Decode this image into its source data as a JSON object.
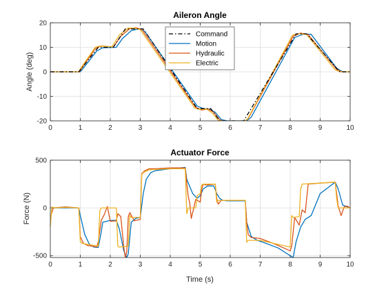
{
  "chart_data": [
    {
      "type": "line",
      "title": "Aileron Angle",
      "xlabel": "",
      "ylabel": "Angle (deg)",
      "xlim": [
        0,
        10
      ],
      "ylim": [
        -20,
        20
      ],
      "xticks": [
        0,
        1,
        2,
        3,
        4,
        5,
        6,
        7,
        8,
        9,
        10
      ],
      "yticks": [
        -20,
        -10,
        0,
        10,
        20
      ],
      "grid": true,
      "legend_position": "top-center",
      "series": [
        {
          "name": "Command",
          "color": "#000000",
          "dash": "dashdot",
          "x": [
            0,
            0.95,
            1.6,
            2.1,
            2.5,
            3.1,
            4.9,
            5.35,
            5.65,
            6.45,
            8.2,
            8.55,
            9.65,
            10
          ],
          "y": [
            0,
            0,
            10,
            10,
            17.5,
            17.5,
            -15,
            -15,
            -20,
            -20,
            15.5,
            15.5,
            0,
            0
          ]
        },
        {
          "name": "Motion",
          "color": "#0072bd",
          "dash": "solid",
          "x": [
            0,
            1.0,
            1.1,
            1.55,
            1.75,
            2.2,
            2.4,
            2.7,
            2.9,
            3.0,
            3.15,
            4.9,
            5.1,
            5.3,
            5.5,
            5.7,
            5.9,
            6.55,
            6.7,
            8.15,
            8.45,
            8.7,
            9.55,
            9.75,
            10
          ],
          "y": [
            0,
            0,
            1.5,
            8.5,
            9.8,
            10,
            13.5,
            16.8,
            17.4,
            17.5,
            16.5,
            -14,
            -15,
            -15.2,
            -16.5,
            -19.5,
            -20,
            -20,
            -18.5,
            14,
            15.4,
            15.3,
            1.5,
            0,
            0
          ]
        },
        {
          "name": "Hydraulic",
          "color": "#d95319",
          "dash": "solid",
          "x": [
            0,
            0.97,
            1.05,
            1.5,
            1.7,
            2.1,
            2.35,
            2.65,
            2.85,
            3.05,
            4.85,
            5.05,
            5.25,
            5.45,
            5.65,
            5.85,
            6.5,
            6.6,
            8.1,
            8.35,
            8.6,
            9.55,
            9.72,
            10
          ],
          "y": [
            0,
            0,
            1.5,
            9.5,
            10.6,
            10.1,
            14.5,
            17.6,
            18.0,
            17.3,
            -14.5,
            -15.6,
            -15.1,
            -16.5,
            -19.6,
            -20.3,
            -20,
            -19.0,
            14.5,
            15.8,
            15.2,
            1.0,
            0,
            0
          ]
        },
        {
          "name": "Electric",
          "color": "#edb120",
          "dash": "solid",
          "x": [
            0,
            0.95,
            1.0,
            1.5,
            1.65,
            2.05,
            2.3,
            2.6,
            2.8,
            3.0,
            4.82,
            5.0,
            5.2,
            5.4,
            5.6,
            5.8,
            6.48,
            6.58,
            8.08,
            8.3,
            8.55,
            9.5,
            9.68,
            10
          ],
          "y": [
            0,
            0,
            1.2,
            10.0,
            10.5,
            10.2,
            15.0,
            17.8,
            17.9,
            17.2,
            -14.8,
            -15.4,
            -15.1,
            -16.8,
            -19.8,
            -20.1,
            -20,
            -19.2,
            15.0,
            15.6,
            15.2,
            0.8,
            0,
            0
          ]
        }
      ]
    },
    {
      "type": "line",
      "title": "Actuator Force",
      "xlabel": "Time (s)",
      "ylabel": "Force (N)",
      "xlim": [
        0,
        10
      ],
      "ylim": [
        -520,
        500
      ],
      "xticks": [
        0,
        1,
        2,
        3,
        4,
        5,
        6,
        7,
        8,
        9,
        10
      ],
      "yticks": [
        -500,
        0,
        500
      ],
      "grid": true,
      "series": [
        {
          "color": "#0072bd",
          "dash": "solid",
          "x": [
            0,
            0.95,
            1.0,
            1.15,
            1.3,
            1.45,
            1.6,
            1.7,
            1.75,
            2.0,
            2.2,
            2.3,
            2.45,
            2.55,
            2.6,
            2.7,
            2.85,
            3.0,
            3.1,
            3.2,
            3.35,
            3.5,
            4.0,
            4.5,
            4.55,
            4.75,
            4.9,
            5.0,
            5.1,
            5.25,
            5.45,
            5.55,
            5.65,
            5.75,
            5.9,
            6.0,
            6.5,
            6.55,
            6.7,
            6.9,
            7.1,
            7.6,
            8.1,
            8.2,
            8.35,
            8.5,
            8.7,
            9.0,
            9.5,
            9.6,
            9.75,
            10
          ],
          "y": [
            0,
            0,
            -80,
            -280,
            -380,
            -410,
            -415,
            -250,
            -150,
            -130,
            -130,
            -220,
            -450,
            -520,
            -480,
            -150,
            -110,
            -100,
            150,
            300,
            370,
            390,
            410,
            425,
            300,
            150,
            100,
            130,
            200,
            230,
            230,
            150,
            100,
            80,
            75,
            75,
            75,
            -150,
            -300,
            -340,
            -360,
            -420,
            -520,
            -350,
            -200,
            -120,
            -80,
            150,
            270,
            200,
            30,
            0
          ]
        },
        {
          "color": "#d95319",
          "dash": "solid",
          "x": [
            0,
            0.1,
            0.5,
            0.95,
            1.0,
            1.1,
            1.25,
            1.4,
            1.55,
            1.6,
            1.7,
            1.8,
            1.9,
            2.0,
            2.2,
            2.25,
            2.35,
            2.45,
            2.5,
            2.55,
            2.6,
            2.65,
            2.8,
            3.0,
            3.05,
            3.15,
            3.3,
            3.5,
            4.0,
            4.5,
            4.55,
            4.6,
            4.65,
            4.7,
            4.85,
            5.0,
            5.05,
            5.1,
            5.2,
            5.5,
            5.55,
            5.6,
            5.7,
            5.9,
            6.5,
            6.55,
            6.6,
            6.7,
            7.0,
            7.5,
            8.0,
            8.05,
            8.15,
            8.3,
            8.4,
            8.5,
            8.6,
            9.0,
            9.5,
            9.55,
            9.6,
            9.7,
            9.8,
            9.9,
            10
          ],
          "y": [
            -100,
            0,
            10,
            0,
            -300,
            -370,
            -395,
            -400,
            -410,
            -350,
            -130,
            -70,
            15,
            -140,
            -135,
            -60,
            -90,
            -410,
            -520,
            -460,
            -90,
            -50,
            -135,
            -120,
            360,
            390,
            410,
            410,
            420,
            420,
            260,
            120,
            50,
            -110,
            90,
            60,
            200,
            250,
            240,
            250,
            100,
            40,
            80,
            80,
            80,
            -150,
            -280,
            -310,
            -320,
            -380,
            -450,
            -400,
            -100,
            -180,
            -20,
            -50,
            250,
            260,
            270,
            150,
            20,
            -80,
            10,
            20,
            0
          ]
        },
        {
          "color": "#edb120",
          "dash": "solid",
          "x": [
            0,
            0.05,
            0.15,
            0.5,
            0.95,
            1.0,
            1.05,
            1.2,
            1.4,
            1.6,
            1.65,
            1.7,
            1.75,
            2.0,
            2.2,
            2.25,
            2.3,
            2.6,
            2.65,
            2.7,
            3.0,
            3.05,
            3.1,
            3.3,
            4.0,
            4.5,
            4.55,
            4.6,
            4.85,
            4.9,
            5.0,
            5.05,
            5.1,
            5.5,
            5.55,
            5.6,
            6.5,
            6.55,
            6.6,
            7.0,
            8.0,
            8.05,
            8.1,
            8.3,
            8.35,
            8.4,
            9.5,
            9.55,
            9.6,
            10
          ],
          "y": [
            -200,
            10,
            0,
            5,
            0,
            -350,
            -370,
            -380,
            -390,
            -400,
            -30,
            0,
            0,
            0,
            0,
            -400,
            -410,
            -400,
            -80,
            -100,
            -100,
            350,
            370,
            400,
            410,
            410,
            -60,
            0,
            0,
            130,
            150,
            240,
            250,
            250,
            60,
            80,
            80,
            -360,
            -340,
            -340,
            -410,
            -80,
            -100,
            -90,
            200,
            250,
            270,
            100,
            0,
            0
          ]
        }
      ]
    }
  ]
}
